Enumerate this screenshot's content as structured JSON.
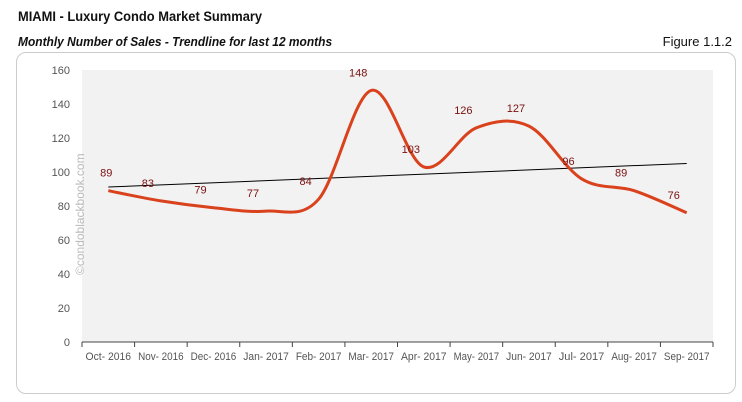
{
  "header": {
    "title": "MIAMI - Luxury Condo Market Summary",
    "subtitle": "Monthly Number of Sales - Trendline for last 12 months",
    "figure": "Figure 1.1.2"
  },
  "watermark": "©condoblackbook.com",
  "chart_data": {
    "type": "line",
    "title": "",
    "xlabel": "",
    "ylabel": "",
    "categories": [
      "Oct- 2016",
      "Nov- 2016",
      "Dec- 2016",
      "Jan- 2017",
      "Feb- 2017",
      "Mar- 2017",
      "Apr- 2017",
      "May- 2017",
      "Jun- 2017",
      "Jul- 2017",
      "Aug- 2017",
      "Sep- 2017"
    ],
    "series": [
      {
        "values": [
          89,
          83,
          79,
          77,
          84,
          148,
          103,
          126,
          127,
          96,
          89,
          76
        ],
        "color": "#d9421c",
        "smooth": true,
        "data_labels": true
      }
    ],
    "trendline": {
      "type": "linear",
      "color": "#000000"
    },
    "ylim": [
      0,
      160
    ],
    "yticks": [
      0,
      20,
      40,
      60,
      80,
      100,
      120,
      140,
      160
    ],
    "grid": false,
    "plot_background": "#f2f2f2",
    "legend": "none"
  }
}
